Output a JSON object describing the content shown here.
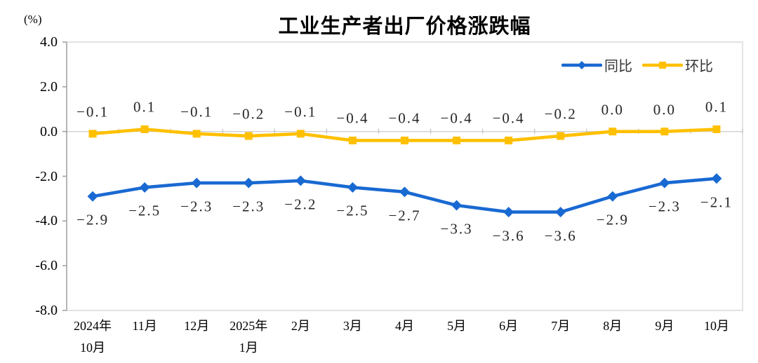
{
  "title": "工业生产者出厂价格涨跌幅",
  "unit_label": "(%)",
  "chart_data": {
    "type": "line",
    "title": "工业生产者出厂价格涨跌幅",
    "ylabel": "(%)",
    "ylim": [
      -8.0,
      4.0
    ],
    "ytick_step": 2.0,
    "ytick_labels": [
      "4.0",
      "2.0",
      "0.0",
      "-2.0",
      "-4.0",
      "-6.0",
      "-8.0"
    ],
    "grid": false,
    "legend_position": "top-right-inside",
    "categories": [
      "2024年\n10月",
      "11月",
      "12月",
      "2025年\n1月",
      "2月",
      "3月",
      "4月",
      "5月",
      "6月",
      "7月",
      "8月",
      "9月",
      "10月"
    ],
    "series": [
      {
        "key": "yoy",
        "name": "同比",
        "color": "#1969D2",
        "marker": "diamond",
        "label_position": "below",
        "values": [
          -2.9,
          -2.5,
          -2.3,
          -2.3,
          -2.2,
          -2.5,
          -2.7,
          -3.3,
          -3.6,
          -3.6,
          -2.9,
          -2.3,
          -2.1
        ]
      },
      {
        "key": "mom",
        "name": "环比",
        "color": "#FFC000",
        "marker": "square",
        "label_position": "above",
        "values": [
          -0.1,
          0.1,
          -0.1,
          -0.2,
          -0.1,
          -0.4,
          -0.4,
          -0.4,
          -0.4,
          -0.2,
          0.0,
          0.0,
          0.1
        ]
      }
    ],
    "axis_colors": {
      "border": "#D9D9D9",
      "zero_line": "#D0D0D0",
      "left_axis": "#9E9E9E",
      "x_tick": "#BFBFBF"
    }
  }
}
